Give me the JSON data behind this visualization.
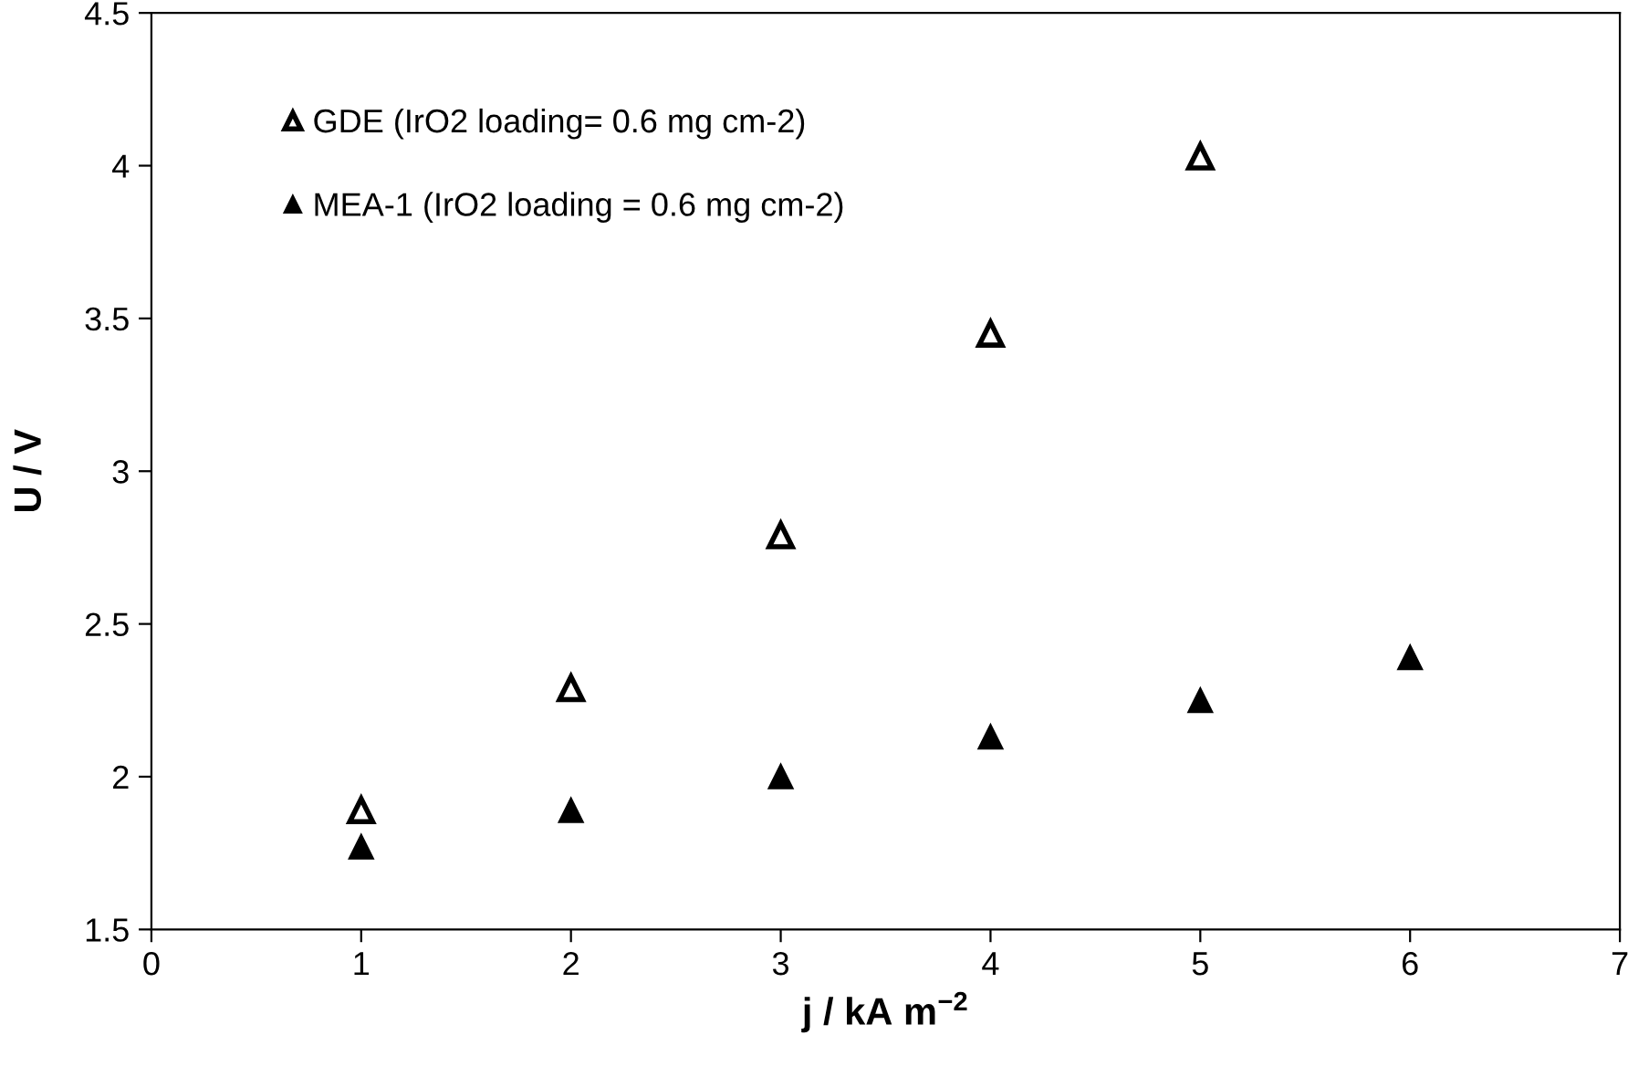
{
  "chart_data": {
    "type": "scatter",
    "xlabel": "j / kA m$^{−2}$",
    "ylabel": "U / V",
    "xlim": [
      0,
      7
    ],
    "xticks": [
      0,
      1,
      2,
      3,
      4,
      5,
      6,
      7
    ],
    "ylim": [
      1.5,
      4.5
    ],
    "yticks": [
      1.5,
      2,
      2.5,
      3,
      3.5,
      4,
      4.5
    ],
    "marker": "triangle",
    "legend": "top left",
    "grid": false,
    "series": [
      {
        "name": "GDE (IrO2 loading= 0.6 mg cm-2)",
        "color": "#000000",
        "x": [
          1,
          2,
          3,
          4,
          5
        ],
        "values": [
          1.89,
          2.29,
          2.79,
          3.45,
          4.03
        ]
      },
      {
        "name": "MEA-1 (IrO2 loading = 0.6 mg cm-2)",
        "color": "#000000",
        "x": [
          1,
          2,
          3,
          4,
          5,
          6
        ],
        "values": [
          1.77,
          1.89,
          2.0,
          2.13,
          2.25,
          2.39
        ]
      }
    ]
  }
}
